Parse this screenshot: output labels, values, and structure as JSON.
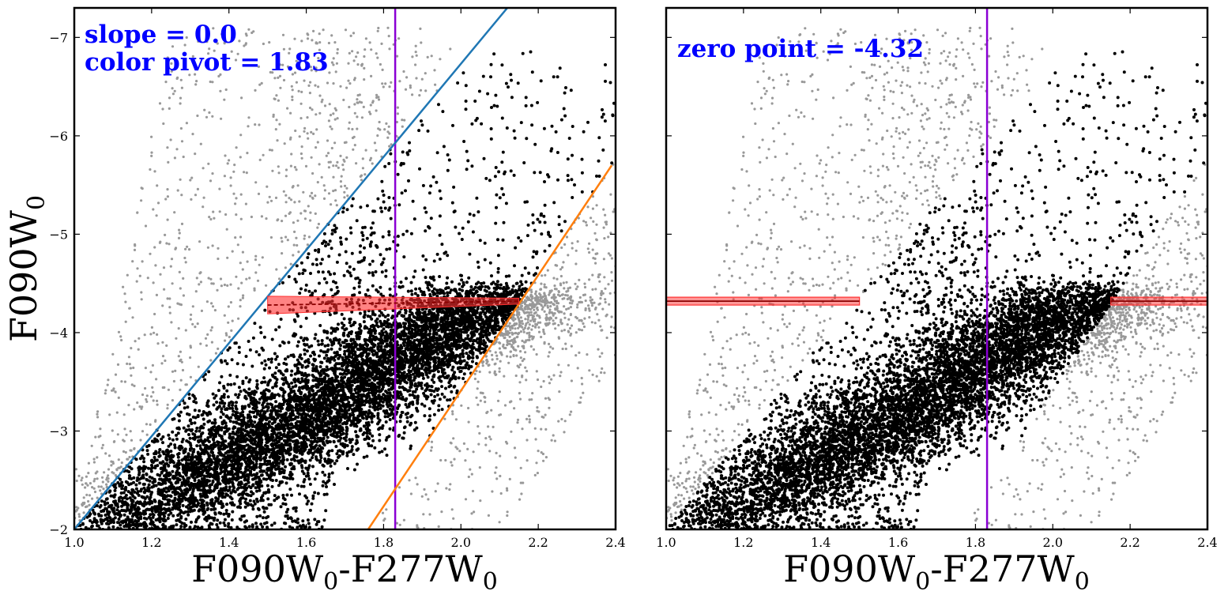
{
  "colors": {
    "highlight_points": "#000000",
    "background_points": "#999999",
    "pivot_line": "#8a00d4",
    "upper_bound": "#1f77b4",
    "lower_bound": "#ff7f0e",
    "fit_band": "#ff3030",
    "fit_line": "#8b0000",
    "annotation": "#0000ff"
  },
  "chart_data": [
    {
      "type": "scatter",
      "panel": "left",
      "xlabel": {
        "main1": "F090W",
        "sub1": "0",
        "main2": "-F277W",
        "sub2": "0"
      },
      "ylabel": {
        "main": "F090W",
        "sub": "0"
      },
      "xlim": [
        1.0,
        2.4
      ],
      "ylim": [
        -2.0,
        -7.3
      ],
      "x_ticks": [
        "1.0",
        "1.2",
        "1.4",
        "1.6",
        "1.8",
        "2.0",
        "2.2",
        "2.4"
      ],
      "y_ticks": [
        {
          "value": -7,
          "label": "−7"
        },
        {
          "value": -6,
          "label": "−6"
        },
        {
          "value": -5,
          "label": "−5"
        },
        {
          "value": -4,
          "label": "−4"
        },
        {
          "value": -3,
          "label": "−3"
        },
        {
          "value": -2,
          "label": "−2"
        }
      ],
      "annotations": [
        "slope = 0.0",
        "color pivot = 1.83"
      ],
      "pivot_color": 1.83,
      "upper_bound_line": {
        "x": [
          1.0,
          2.12
        ],
        "y": [
          -2.0,
          -7.3
        ]
      },
      "lower_bound_line": {
        "x": [
          1.76,
          2.39
        ],
        "y": [
          -2.0,
          -5.7
        ]
      },
      "tip_fit": {
        "x": [
          1.5,
          2.15
        ],
        "y_center": [
          -4.28,
          -4.32
        ],
        "y_band_upper": [
          -4.37,
          -4.35
        ],
        "y_band_lower": [
          -4.19,
          -4.29
        ]
      },
      "selected_stars_description": "dense black clump from (1.0,-2.0) to (2.2,-4.3) between bounds; sparse black points above tip up to -6.7",
      "background_stars_description": "grey points outside the color bounds"
    },
    {
      "type": "scatter",
      "panel": "right",
      "xlabel": {
        "main1": "F090W",
        "sub1": "0",
        "main2": "-F277W",
        "sub2": "0"
      },
      "xlim": [
        1.0,
        2.4
      ],
      "ylim": [
        -2.0,
        -7.3
      ],
      "x_ticks": [
        "1.0",
        "1.2",
        "1.4",
        "1.6",
        "1.8",
        "2.0",
        "2.2",
        "2.4"
      ],
      "annotations": [
        "zero point = -4.32"
      ],
      "pivot_color": 1.83,
      "zero_point": -4.32,
      "tip_band": {
        "y_upper": -4.36,
        "y_lower": -4.28
      },
      "tip_segments": [
        {
          "x": [
            1.0,
            1.5
          ]
        },
        {
          "x": [
            2.15,
            2.4
          ]
        }
      ]
    }
  ]
}
